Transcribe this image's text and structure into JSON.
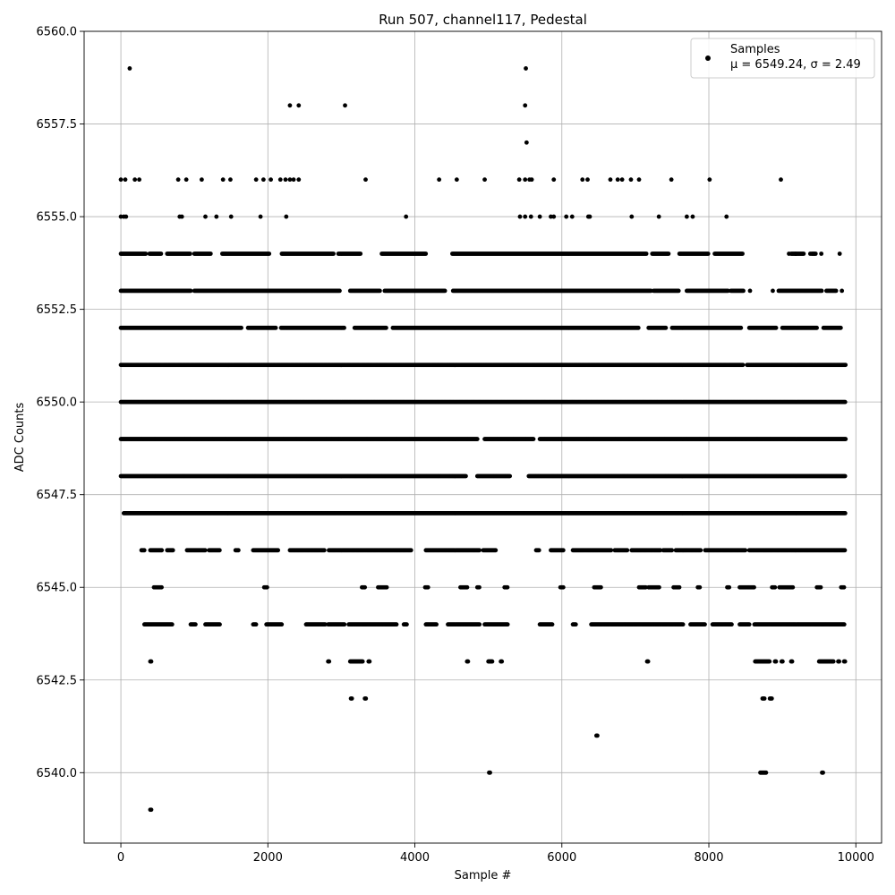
{
  "chart_data": {
    "type": "scatter",
    "title": "Run 507, channel117, Pedestal",
    "xlabel": "Sample #",
    "ylabel": "ADC Counts",
    "xlim": [
      -500,
      10350
    ],
    "ylim": [
      6538.1,
      6560.0
    ],
    "xticks": [
      0,
      2000,
      4000,
      6000,
      8000,
      10000
    ],
    "yticks": [
      6540.0,
      6542.5,
      6545.0,
      6547.5,
      6550.0,
      6552.5,
      6555.0,
      6557.5,
      6560.0
    ],
    "xtick_labels": [
      "0",
      "2000",
      "4000",
      "6000",
      "8000",
      "10000"
    ],
    "ytick_labels": [
      "6540.0",
      "6542.5",
      "6545.0",
      "6547.5",
      "6550.0",
      "6552.5",
      "6555.0",
      "6557.5",
      "6560.0"
    ],
    "grid": true,
    "legend": {
      "position": "top-right",
      "entries": [
        "Samples",
        "μ = 6549.24, σ = 2.49"
      ]
    },
    "series": [
      {
        "name": "Samples",
        "color": "#000000",
        "bands": [
          {
            "y": 6554,
            "segments": [
              [
                0,
                340
              ],
              [
                390,
                550
              ],
              [
                630,
                950
              ],
              [
                1000,
                1230
              ],
              [
                1380,
                2020
              ],
              [
                2190,
                2900
              ],
              [
                2960,
                3260
              ],
              [
                3550,
                4150
              ],
              [
                4510,
                7150
              ],
              [
                7230,
                7460
              ],
              [
                7600,
                8000
              ],
              [
                8080,
                8460
              ],
              [
                9120,
                9300
              ],
              [
                9400,
                9460
              ]
            ]
          },
          {
            "y": 6553,
            "segments": [
              [
                0,
                960
              ],
              [
                1000,
                2980
              ],
              [
                3120,
                3530
              ],
              [
                3590,
                4420
              ],
              [
                4520,
                7220
              ],
              [
                7250,
                7600
              ],
              [
                7700,
                8260
              ],
              [
                8300,
                8480
              ],
              [
                8950,
                9540
              ],
              [
                9600,
                9740
              ]
            ]
          },
          {
            "y": 6552,
            "segments": [
              [
                0,
                1650
              ],
              [
                1730,
                2110
              ],
              [
                2180,
                3050
              ],
              [
                3180,
                3620
              ],
              [
                3700,
                7050
              ],
              [
                7180,
                7420
              ],
              [
                7500,
                8440
              ],
              [
                8550,
                8920
              ],
              [
                9000,
                9480
              ],
              [
                9560,
                9800
              ]
            ]
          },
          {
            "y": 6551,
            "segments": [
              [
                0,
                8470
              ],
              [
                8520,
                9860
              ]
            ]
          },
          {
            "y": 6550,
            "segments": [
              [
                0,
                9860
              ]
            ]
          },
          {
            "y": 6549,
            "segments": [
              [
                0,
                4850
              ],
              [
                4950,
                5620
              ],
              [
                5700,
                9860
              ]
            ]
          },
          {
            "y": 6548,
            "segments": [
              [
                0,
                4700
              ],
              [
                4850,
                5300
              ],
              [
                5550,
                9860
              ]
            ]
          },
          {
            "y": 6547,
            "segments": [
              [
                40,
                9860
              ]
            ]
          },
          {
            "y": 6546,
            "segments": [
              [
                280,
                330
              ],
              [
                400,
                560
              ],
              [
                630,
                720
              ],
              [
                900,
                1150
              ],
              [
                1200,
                1350
              ],
              [
                1560,
                1600
              ],
              [
                1800,
                2150
              ],
              [
                2300,
                2780
              ],
              [
                2830,
                3950
              ],
              [
                4150,
                4880
              ],
              [
                4930,
                5100
              ],
              [
                5650,
                5700
              ],
              [
                5850,
                6020
              ],
              [
                6150,
                6680
              ],
              [
                6720,
                6900
              ],
              [
                6950,
                7350
              ],
              [
                7380,
                7500
              ],
              [
                7550,
                7900
              ],
              [
                7950,
                8500
              ],
              [
                8550,
                9850
              ]
            ]
          },
          {
            "y": 6545,
            "segments": [
              [
                450,
                560
              ],
              [
                1950,
                2000
              ],
              [
                3280,
                3320
              ],
              [
                3500,
                3620
              ],
              [
                4140,
                4180
              ],
              [
                4620,
                4720
              ],
              [
                4850,
                4880
              ],
              [
                5220,
                5260
              ],
              [
                5980,
                6020
              ],
              [
                6440,
                6540
              ],
              [
                7050,
                7150
              ],
              [
                7180,
                7330
              ],
              [
                7520,
                7600
              ],
              [
                7850,
                7880
              ],
              [
                8250,
                8280
              ],
              [
                8420,
                8620
              ],
              [
                8860,
                8900
              ],
              [
                8960,
                9150
              ],
              [
                9470,
                9530
              ],
              [
                9800,
                9850
              ]
            ]
          },
          {
            "y": 6544,
            "segments": [
              [
                320,
                700
              ],
              [
                950,
                1020
              ],
              [
                1150,
                1350
              ],
              [
                1800,
                1850
              ],
              [
                1980,
                2200
              ],
              [
                2520,
                2780
              ],
              [
                2820,
                3050
              ],
              [
                3100,
                3750
              ],
              [
                3850,
                3900
              ],
              [
                4150,
                4300
              ],
              [
                4450,
                4880
              ],
              [
                4950,
                5270
              ],
              [
                5700,
                5880
              ],
              [
                6150,
                6200
              ],
              [
                6400,
                7650
              ],
              [
                7750,
                7950
              ],
              [
                8050,
                8320
              ],
              [
                8420,
                8550
              ],
              [
                8620,
                9850
              ]
            ]
          },
          {
            "y": 6543,
            "segments": [
              [
                400,
                420
              ],
              [
                2820,
                2840
              ],
              [
                3120,
                3300
              ],
              [
                3370,
                3390
              ],
              [
                4710,
                4730
              ],
              [
                5000,
                5060
              ],
              [
                5170,
                5190
              ],
              [
                7160,
                7180
              ],
              [
                8630,
                8830
              ],
              [
                8900,
                8920
              ],
              [
                8990,
                9010
              ],
              [
                9120,
                9140
              ],
              [
                9500,
                9700
              ],
              [
                9760,
                9780
              ],
              [
                9840,
                9860
              ]
            ]
          },
          {
            "y": 6542,
            "segments": [
              [
                3130,
                3150
              ],
              [
                3320,
                3340
              ],
              [
                8730,
                8760
              ],
              [
                8830,
                8860
              ]
            ]
          },
          {
            "y": 6541,
            "segments": [
              [
                6470,
                6490
              ]
            ]
          },
          {
            "y": 6540,
            "segments": [
              [
                5010,
                5030
              ],
              [
                8700,
                8780
              ],
              [
                9540,
                9560
              ]
            ]
          },
          {
            "y": 6539,
            "segments": [
              [
                400,
                420
              ]
            ]
          }
        ],
        "sparse_points": [
          [
            0,
            6556
          ],
          [
            60,
            6556
          ],
          [
            190,
            6556
          ],
          [
            250,
            6556
          ],
          [
            780,
            6556
          ],
          [
            890,
            6556
          ],
          [
            1100,
            6556
          ],
          [
            1390,
            6556
          ],
          [
            1490,
            6556
          ],
          [
            1840,
            6556
          ],
          [
            1940,
            6556
          ],
          [
            2040,
            6556
          ],
          [
            2170,
            6556
          ],
          [
            2240,
            6556
          ],
          [
            2300,
            6556
          ],
          [
            2350,
            6556
          ],
          [
            2420,
            6556
          ],
          [
            3330,
            6556
          ],
          [
            4330,
            6556
          ],
          [
            4570,
            6556
          ],
          [
            4950,
            6556
          ],
          [
            5420,
            6556
          ],
          [
            5500,
            6556
          ],
          [
            5560,
            6556
          ],
          [
            5590,
            6556
          ],
          [
            5890,
            6556
          ],
          [
            6280,
            6556
          ],
          [
            6350,
            6556
          ],
          [
            6660,
            6556
          ],
          [
            6760,
            6556
          ],
          [
            6820,
            6556
          ],
          [
            6940,
            6556
          ],
          [
            7050,
            6556
          ],
          [
            7490,
            6556
          ],
          [
            8010,
            6556
          ],
          [
            8980,
            6556
          ],
          [
            0,
            6555
          ],
          [
            40,
            6555
          ],
          [
            70,
            6555
          ],
          [
            800,
            6555
          ],
          [
            830,
            6555
          ],
          [
            1150,
            6555
          ],
          [
            1300,
            6555
          ],
          [
            1500,
            6555
          ],
          [
            1900,
            6555
          ],
          [
            2250,
            6555
          ],
          [
            3880,
            6555
          ],
          [
            5430,
            6555
          ],
          [
            5500,
            6555
          ],
          [
            5580,
            6555
          ],
          [
            5700,
            6555
          ],
          [
            5850,
            6555
          ],
          [
            5890,
            6555
          ],
          [
            6060,
            6555
          ],
          [
            6140,
            6555
          ],
          [
            6360,
            6555
          ],
          [
            6380,
            6555
          ],
          [
            6950,
            6555
          ],
          [
            7320,
            6555
          ],
          [
            7700,
            6555
          ],
          [
            7780,
            6555
          ],
          [
            8240,
            6555
          ],
          [
            9090,
            6554
          ],
          [
            9180,
            6554
          ],
          [
            9380,
            6554
          ],
          [
            9530,
            6554
          ],
          [
            9780,
            6554
          ],
          [
            8560,
            6553
          ],
          [
            8870,
            6553
          ],
          [
            9810,
            6553
          ],
          [
            120,
            6559
          ],
          [
            5510,
            6559
          ],
          [
            2300,
            6558
          ],
          [
            2420,
            6558
          ],
          [
            3050,
            6558
          ],
          [
            5500,
            6558
          ],
          [
            5520,
            6557
          ]
        ]
      }
    ]
  }
}
